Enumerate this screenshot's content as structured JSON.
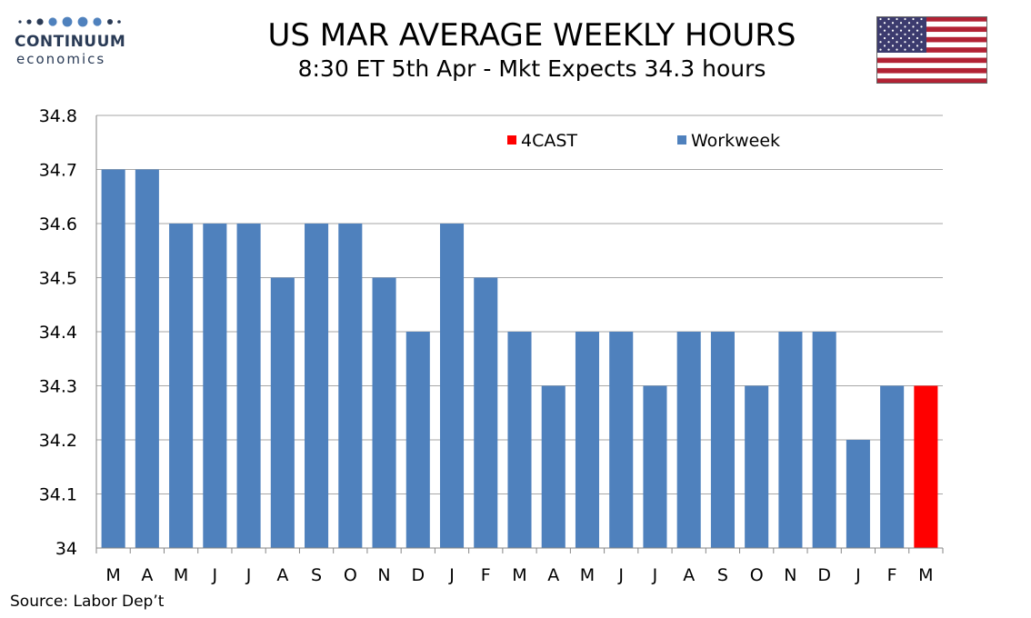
{
  "header": {
    "title": "US MAR AVERAGE WEEKLY HOURS",
    "subtitle": "8:30 ET 5th Apr - Mkt Expects 34.3 hours"
  },
  "logo": {
    "line1": "CONTINUUM",
    "line2": "economics",
    "color": "#2a3b56"
  },
  "flag": {
    "icon": "us-flag-icon"
  },
  "footer": {
    "source": "Source: Labor Dep’t"
  },
  "colors": {
    "workweek": "#4f81bd",
    "forecast": "#ff0000",
    "grid": "#a6a6a6",
    "axis": "#868686"
  },
  "chart_data": {
    "type": "bar",
    "categories": [
      "M",
      "A",
      "M",
      "J",
      "J",
      "A",
      "S",
      "O",
      "N",
      "D",
      "J",
      "F",
      "M",
      "A",
      "M",
      "J",
      "J",
      "A",
      "S",
      "O",
      "N",
      "D",
      "J",
      "F",
      "M"
    ],
    "series": [
      {
        "name": "Workweek",
        "color": "#4f81bd",
        "values": [
          34.7,
          34.7,
          34.6,
          34.6,
          34.6,
          34.5,
          34.6,
          34.6,
          34.5,
          34.4,
          34.6,
          34.5,
          34.4,
          34.3,
          34.4,
          34.4,
          34.3,
          34.4,
          34.4,
          34.3,
          34.4,
          34.4,
          34.2,
          34.3,
          null
        ]
      },
      {
        "name": "4CAST",
        "color": "#ff0000",
        "values": [
          null,
          null,
          null,
          null,
          null,
          null,
          null,
          null,
          null,
          null,
          null,
          null,
          null,
          null,
          null,
          null,
          null,
          null,
          null,
          null,
          null,
          null,
          null,
          null,
          34.3
        ]
      }
    ],
    "legend_order": [
      "4CAST",
      "Workweek"
    ],
    "ylim": [
      34,
      34.8
    ],
    "yticks": [
      "34",
      "34.1",
      "34.2",
      "34.3",
      "34.4",
      "34.5",
      "34.6",
      "34.7",
      "34.8"
    ],
    "grid": true,
    "legend_position": "top-center",
    "xlabel": "",
    "ylabel": ""
  }
}
